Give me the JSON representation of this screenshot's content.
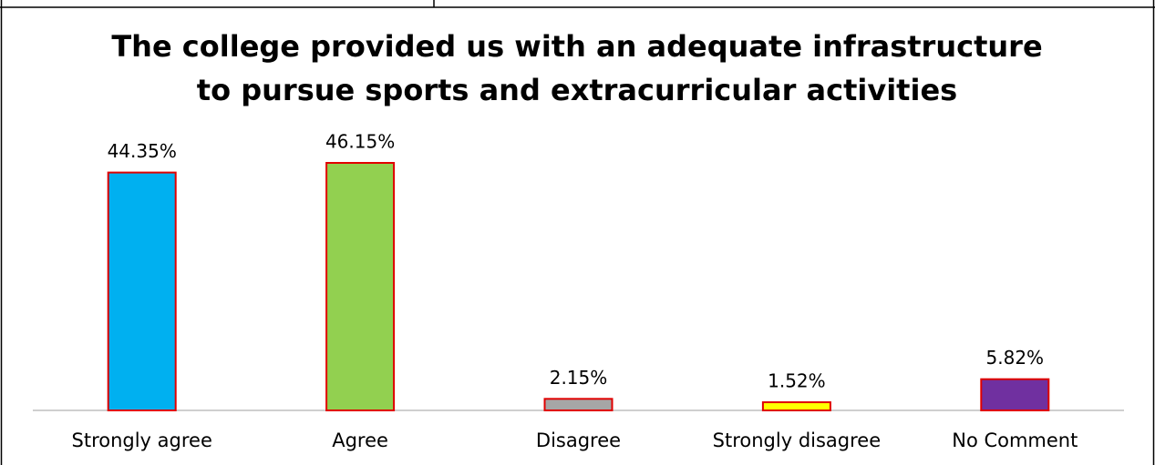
{
  "chart_data": {
    "type": "bar",
    "title": [
      "The college provided us with an adequate infrastructure",
      "to pursue sports and extracurricular activities"
    ],
    "categories": [
      "Strongly agree",
      "Agree",
      "Disagree",
      "Strongly disagree",
      "No Comment"
    ],
    "values": [
      44.35,
      46.15,
      2.15,
      1.52,
      5.82
    ],
    "value_labels": [
      "44.35%",
      "46.15%",
      "2.15%",
      "1.52%",
      "5.82%"
    ],
    "colors": [
      "#00b0f0",
      "#92d050",
      "#a6a6a6",
      "#ffff00",
      "#7030a0"
    ],
    "edge_color": "#e00000"
  }
}
